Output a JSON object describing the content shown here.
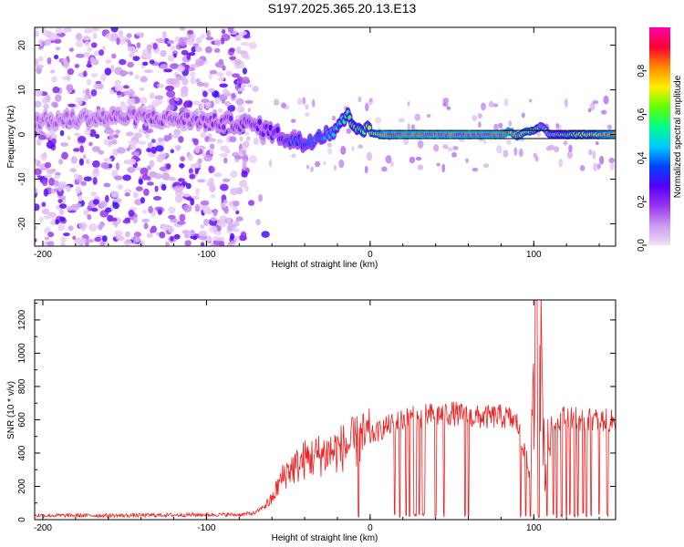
{
  "figure_title": "S197.2025.365.20.13.E13",
  "chart_data": [
    {
      "type": "heatmap",
      "title": "S197.2025.365.20.13.E13",
      "xlabel": "Height of straight line (km)",
      "ylabel": "Frequency (Hz)",
      "xlim": [
        -205,
        150
      ],
      "ylim": [
        -25,
        24
      ],
      "xticks": [
        -200,
        -100,
        0,
        100
      ],
      "yticks": [
        -20,
        -10,
        0,
        10,
        20
      ],
      "colorbar": {
        "label": "Normalized spectral amplitude",
        "range": [
          0.0,
          1.0
        ],
        "ticks": [
          0.0,
          0.2,
          0.4,
          0.6,
          0.8
        ],
        "tick_labels": [
          "0.0",
          "0.2",
          "0.4",
          "0.6",
          "0.8"
        ],
        "colors": [
          "#f0e0f8",
          "#cc99f0",
          "#9933ee",
          "#5500ff",
          "#0044ff",
          "#00ccff",
          "#00ff88",
          "#66ff00",
          "#ffee00",
          "#ff8800",
          "#ff0033",
          "#ff00aa"
        ]
      },
      "ridge_line": {
        "x": [
          -205,
          -150,
          -120,
          -100,
          -80,
          -70,
          -60,
          -50,
          -40,
          -30,
          -22,
          -18,
          -14,
          -10,
          -5,
          0,
          5,
          10,
          30,
          60,
          80,
          85,
          90,
          95,
          100,
          105,
          110,
          130,
          150
        ],
        "y": [
          3,
          4,
          3.5,
          3,
          2.5,
          2,
          0.5,
          -1,
          -2,
          0,
          1,
          3,
          4,
          2.5,
          1.5,
          0.5,
          0,
          0,
          0,
          0,
          0,
          0.8,
          -0.5,
          0.5,
          1,
          2,
          0,
          0,
          0
        ]
      },
      "amplitude_profile": {
        "x": [
          -205,
          -100,
          -70,
          -50,
          -30,
          -15,
          0,
          10,
          80,
          100,
          105,
          150
        ],
        "amplitude": [
          0.15,
          0.2,
          0.25,
          0.35,
          0.45,
          0.6,
          0.7,
          0.97,
          0.97,
          0.75,
          0.5,
          0.95
        ]
      },
      "noise_scatter": {
        "x_range": [
          -205,
          -75
        ],
        "y_range": [
          -25,
          24
        ],
        "amplitude_range": [
          0.02,
          0.3
        ]
      }
    },
    {
      "type": "line",
      "xlabel": "Height of straight line (km)",
      "ylabel": "SNR (10 * v/v)",
      "xlim": [
        -205,
        150
      ],
      "ylim": [
        0,
        1320
      ],
      "xticks": [
        -200,
        -100,
        0,
        100
      ],
      "yticks": [
        0,
        200,
        400,
        600,
        800,
        1000,
        1200
      ],
      "line_color": "#ee2222",
      "series": [
        {
          "name": "SNR",
          "x": [
            -205,
            -150,
            -100,
            -80,
            -70,
            -65,
            -60,
            -55,
            -50,
            -45,
            -40,
            -30,
            -20,
            -10,
            0,
            10,
            20,
            30,
            40,
            50,
            60,
            70,
            80,
            85,
            90,
            95,
            98,
            100,
            102,
            105,
            107,
            110,
            115,
            120,
            130,
            140,
            150
          ],
          "y": [
            25,
            25,
            30,
            30,
            40,
            80,
            120,
            230,
            300,
            320,
            360,
            390,
            420,
            460,
            500,
            560,
            600,
            620,
            630,
            640,
            615,
            615,
            620,
            610,
            580,
            380,
            280,
            700,
            1300,
            850,
            250,
            550,
            600,
            620,
            600,
            600,
            590
          ]
        }
      ],
      "dropouts_x": [
        -7,
        15,
        18,
        22,
        24,
        27,
        28,
        30,
        32,
        33,
        40,
        45,
        58,
        60,
        92,
        95,
        98,
        103,
        108,
        112,
        114,
        117,
        120,
        122,
        125,
        127,
        130,
        132,
        135,
        140,
        145
      ]
    }
  ]
}
